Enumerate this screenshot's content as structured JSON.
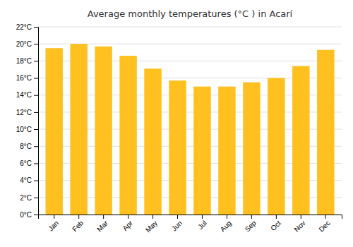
{
  "chart_data": {
    "type": "bar",
    "title": "Average monthly temperatures (°C ) in Acarí",
    "categories": [
      "Jan",
      "Feb",
      "Mar",
      "Apr",
      "May",
      "Jun",
      "Jul",
      "Aug",
      "Sep",
      "Oct",
      "Nov",
      "Dec"
    ],
    "values": [
      19.5,
      20.0,
      19.7,
      18.6,
      17.1,
      15.7,
      15.0,
      15.0,
      15.5,
      16.0,
      17.4,
      19.3
    ],
    "color": "#FFC020",
    "ylim": [
      0,
      22
    ],
    "yticks": [
      {
        "value": 0,
        "label": "0°C"
      },
      {
        "value": 2,
        "label": "2°C"
      },
      {
        "value": 4,
        "label": "4°C"
      },
      {
        "value": 6,
        "label": "6°C"
      },
      {
        "value": 8,
        "label": "8°C"
      },
      {
        "value": 10,
        "label": "10°C"
      },
      {
        "value": 12,
        "label": "12°C"
      },
      {
        "value": 14,
        "label": "14°C"
      },
      {
        "value": 16,
        "label": "16°C"
      },
      {
        "value": 18,
        "label": "18°C"
      },
      {
        "value": 20,
        "label": "20°C"
      },
      {
        "value": 22,
        "label": "22°C"
      }
    ],
    "grid": true
  }
}
